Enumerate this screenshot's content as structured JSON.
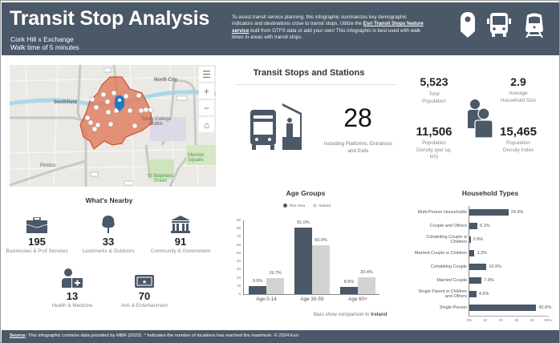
{
  "header": {
    "title": "Transit Stop Analysis",
    "location": "Cork Hill x Exchange",
    "walk_time": "Walk time of 5 minutes",
    "description_before_link": "To assist transit service planning, this infographic summarizes key demographic indicators and destinations close to transit stops. Utilize the ",
    "description_link": "Esri Transit Stops feature service",
    "description_after_link": " built from GTFS data or add your own! This infographic is best used with walk times in areas with transit stops.",
    "icons": [
      "map-pin-icon",
      "bus-icon",
      "train-icon"
    ],
    "bg_color": "#4a5868"
  },
  "map": {
    "labels": [
      "North City",
      "Smithfield",
      "Temple Bar",
      "Trinity College Dublin",
      "Pimlico",
      "Merrion Square",
      "St Stephens Green"
    ],
    "road_shields": [
      "N1",
      "R105",
      "N81",
      "R114"
    ],
    "controls": [
      "legend-icon",
      "zoom-in-icon",
      "zoom-out-icon",
      "home-icon"
    ],
    "area_color": "#d9603b"
  },
  "transit": {
    "title": "Transit Stops and Stations",
    "count": "28",
    "count_label": "Including Platforms, Entrances and Exits"
  },
  "population": {
    "total_population": {
      "value": "5,523",
      "label": "Total Population"
    },
    "avg_household_size": {
      "value": "2.9",
      "label": "Average Household Size"
    },
    "population_density": {
      "value": "11,506",
      "label": "Population Density (per sq. km)"
    },
    "density_index": {
      "value": "15,465",
      "label": "Population Density Index"
    }
  },
  "nearby": {
    "title": "What's Nearby",
    "items": [
      {
        "icon": "briefcase-icon",
        "value": "195",
        "label": "Businesses & Prof Services"
      },
      {
        "icon": "tree-icon",
        "value": "33",
        "label": "Landmarks & Outdoors"
      },
      {
        "icon": "government-building-icon",
        "value": "91",
        "label": "Community & Government"
      },
      {
        "icon": "health-person-icon",
        "value": "13",
        "label": "Health & Medicine"
      },
      {
        "icon": "ticket-icon",
        "value": "70",
        "label": "Arts & Entertainment"
      }
    ]
  },
  "age_note": {
    "prefix": "Bars show comparison to ",
    "region": "Ireland"
  },
  "footer": {
    "source_label": "Source",
    "text": ": This infographic contains data provided by MBR (2023). * Indicates the number of locations has reached the maximum. © 2024 Esri"
  },
  "chart_data": [
    {
      "type": "bar",
      "title": "Age Groups",
      "categories": [
        "Age 0-14",
        "Age 30-59",
        "Age 60+"
      ],
      "series": [
        {
          "name": "This Area",
          "color": "#4a5868",
          "values": [
            9.9,
            81.0,
            8.8
          ],
          "labels": [
            "9.9%",
            "81.0%",
            "8.8%"
          ]
        },
        {
          "name": "Ireland",
          "color": "#d3d3d3",
          "values": [
            19.7,
            60.0,
            20.4
          ],
          "labels": [
            "19.7%",
            "60.0%",
            "20.4%"
          ]
        }
      ],
      "yticks": [
        "0",
        "10",
        "20",
        "30",
        "40",
        "50",
        "60",
        "70",
        "80",
        "90"
      ],
      "ylim": [
        0,
        90
      ],
      "legend_position": "top",
      "grid": false
    },
    {
      "type": "bar",
      "orientation": "horizontal",
      "title": "Household Types",
      "categories": [
        "Multi-Person Households",
        "Couple and Others",
        "Cohabiting Couple w Children",
        "Married Couple w Children",
        "Cohabiting Couple",
        "Married Couple",
        "Single Parent w Children and Others",
        "Single Person"
      ],
      "values": [
        24.9,
        5.1,
        0.9,
        3.3,
        10.9,
        7.8,
        4.5,
        42.6
      ],
      "labels": [
        "24.9%",
        "5.1%",
        "0.9%",
        "3.3%",
        "10.9%",
        "7.8%",
        "4.5%",
        "42.6%"
      ],
      "xticks": [
        "0%",
        "10",
        "20",
        "30",
        "40",
        "50%"
      ],
      "xlim": [
        0,
        50
      ],
      "color": "#4a5868",
      "grid": false
    }
  ]
}
